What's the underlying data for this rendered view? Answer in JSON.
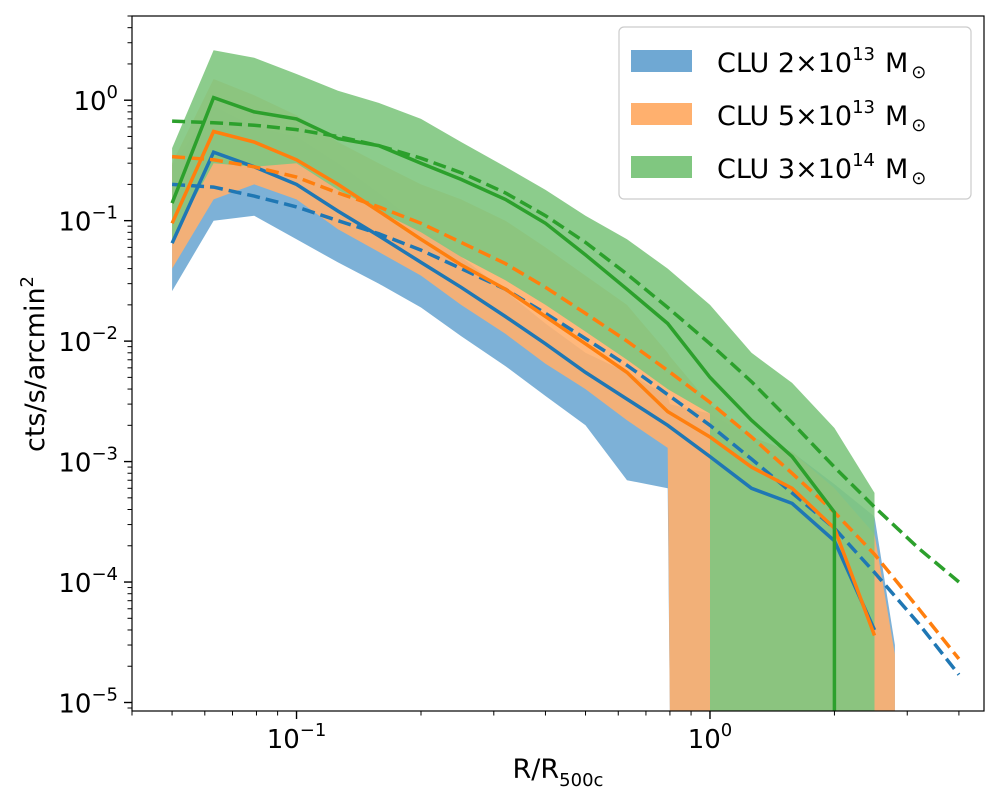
{
  "chart_data": {
    "type": "line",
    "xscale": "log",
    "yscale": "log",
    "xlim": [
      0.04,
      4.6
    ],
    "ylim": [
      8.5e-06,
      5.0
    ],
    "grid": false,
    "legend_position": "top-right",
    "xlabel": {
      "main": "R/R",
      "sub": "500c"
    },
    "ylabel": {
      "main": "cts/s/arcmin",
      "sup": "2"
    },
    "x_ticks": [
      {
        "value": 0.1,
        "base": "10",
        "exp": "−1"
      },
      {
        "value": 1.0,
        "base": "10",
        "exp": "0"
      }
    ],
    "y_ticks": [
      {
        "value": 1.0,
        "base": "10",
        "exp": "0"
      },
      {
        "value": 0.1,
        "base": "10",
        "exp": "−1"
      },
      {
        "value": 0.01,
        "base": "10",
        "exp": "−2"
      },
      {
        "value": 0.001,
        "base": "10",
        "exp": "−3"
      },
      {
        "value": 0.0001,
        "base": "10",
        "exp": "−4"
      },
      {
        "value": 1e-05,
        "base": "10",
        "exp": "−5"
      }
    ],
    "series": [
      {
        "name": "CLU 2×10^13 M☉",
        "legend": {
          "prefix": "CLU 2×10",
          "exp": "13",
          "unit": "M",
          "sub": "⊙"
        },
        "color": "#1f77b4",
        "band_color": "#6fa8d3",
        "band": {
          "x": [
            0.05,
            0.063,
            0.079,
            0.1,
            0.126,
            0.158,
            0.2,
            0.25,
            0.32,
            0.4,
            0.5,
            0.63,
            0.79,
            0.8,
            1.0,
            1.26,
            1.58,
            2.0,
            2.5,
            2.8,
            2.8
          ],
          "lower": [
            0.026,
            0.1,
            0.11,
            0.07,
            0.045,
            0.03,
            0.019,
            0.011,
            0.0062,
            0.0035,
            0.002,
            0.0007,
            0.0006,
            7.5e-06,
            7.5e-06,
            7.5e-06,
            7.5e-06,
            7.5e-06,
            7.5e-06,
            7.5e-06,
            7.5e-06
          ],
          "upper": [
            0.29,
            0.9,
            0.6,
            0.5,
            0.3,
            0.17,
            0.09,
            0.05,
            0.026,
            0.014,
            0.008,
            0.0055,
            0.0035,
            0.003,
            0.0025,
            0.0016,
            0.0012,
            0.00065,
            0.00035,
            3e-05,
            2e-05
          ]
        },
        "line": {
          "x": [
            0.05,
            0.063,
            0.079,
            0.1,
            0.126,
            0.158,
            0.2,
            0.25,
            0.32,
            0.4,
            0.5,
            0.63,
            0.79,
            1.0,
            1.26,
            1.58,
            2.0,
            2.5
          ],
          "y": [
            0.065,
            0.37,
            0.28,
            0.2,
            0.12,
            0.075,
            0.045,
            0.028,
            0.016,
            0.0095,
            0.0055,
            0.0033,
            0.002,
            0.0011,
            0.0006,
            0.00045,
            0.00022,
            4e-05
          ]
        },
        "model": {
          "x": [
            0.05,
            0.063,
            0.079,
            0.1,
            0.126,
            0.158,
            0.2,
            0.25,
            0.32,
            0.4,
            0.5,
            0.63,
            0.79,
            1.0,
            1.26,
            1.58,
            2.0,
            2.5,
            3.2,
            4.0
          ],
          "y": [
            0.2,
            0.19,
            0.16,
            0.13,
            0.1,
            0.078,
            0.057,
            0.04,
            0.027,
            0.017,
            0.0105,
            0.0063,
            0.0036,
            0.002,
            0.00105,
            0.00055,
            0.00028,
            0.00012,
            4.5e-05,
            1.7e-05
          ]
        }
      },
      {
        "name": "CLU 5×10^13 M☉",
        "legend": {
          "prefix": "CLU 5×10",
          "exp": "13",
          "unit": "M",
          "sub": "⊙"
        },
        "color": "#ff7f0e",
        "band_color": "#ffb06e",
        "band": {
          "x": [
            0.05,
            0.063,
            0.079,
            0.1,
            0.126,
            0.158,
            0.2,
            0.25,
            0.32,
            0.4,
            0.5,
            0.63,
            0.79,
            0.8,
            1.0,
            1.26,
            1.58,
            2.0,
            2.5,
            2.8,
            2.8
          ],
          "lower": [
            0.04,
            0.15,
            0.2,
            0.15,
            0.085,
            0.055,
            0.035,
            0.02,
            0.0115,
            0.0065,
            0.004,
            0.0022,
            0.0013,
            7.5e-06,
            7.5e-06,
            7.5e-06,
            7.5e-06,
            7.5e-06,
            7.5e-06,
            7.5e-06,
            7.5e-06
          ],
          "upper": [
            0.3,
            1.5,
            1.1,
            0.75,
            0.45,
            0.3,
            0.2,
            0.15,
            0.1,
            0.06,
            0.035,
            0.02,
            0.008,
            0.0075,
            0.003,
            0.0016,
            0.0012,
            0.0006,
            0.00025,
            2.5e-05,
            2e-05
          ]
        },
        "line": {
          "x": [
            0.05,
            0.063,
            0.079,
            0.1,
            0.126,
            0.158,
            0.2,
            0.25,
            0.32,
            0.4,
            0.5,
            0.63,
            0.79,
            1.0,
            1.26,
            1.58,
            2.0,
            2.5
          ],
          "y": [
            0.095,
            0.55,
            0.45,
            0.32,
            0.2,
            0.12,
            0.07,
            0.043,
            0.027,
            0.016,
            0.0095,
            0.0055,
            0.0026,
            0.0016,
            0.0009,
            0.0006,
            0.00028,
            3.6e-05
          ]
        },
        "model": {
          "x": [
            0.05,
            0.063,
            0.079,
            0.1,
            0.126,
            0.158,
            0.2,
            0.25,
            0.32,
            0.4,
            0.5,
            0.63,
            0.79,
            1.0,
            1.26,
            1.58,
            2.0,
            2.5,
            3.2,
            4.0
          ],
          "y": [
            0.34,
            0.32,
            0.28,
            0.23,
            0.17,
            0.13,
            0.095,
            0.066,
            0.044,
            0.028,
            0.017,
            0.01,
            0.0057,
            0.0031,
            0.0016,
            0.0008,
            0.00038,
            0.00017,
            6e-05,
            2.3e-05
          ]
        }
      },
      {
        "name": "CLU 3×10^14 M☉",
        "legend": {
          "prefix": "CLU 3×10",
          "exp": "14",
          "unit": "M",
          "sub": "⊙"
        },
        "color": "#2ca02c",
        "band_color": "#80c780",
        "band": {
          "x": [
            0.05,
            0.063,
            0.079,
            0.1,
            0.126,
            0.158,
            0.2,
            0.25,
            0.32,
            0.4,
            0.5,
            0.63,
            0.79,
            1.0,
            1.0,
            1.26,
            1.58,
            2.0,
            2.5,
            2.5
          ],
          "lower": [
            0.07,
            0.3,
            0.28,
            0.3,
            0.18,
            0.12,
            0.08,
            0.05,
            0.032,
            0.02,
            0.012,
            0.007,
            0.004,
            0.0025,
            7.5e-06,
            7.5e-06,
            7.5e-06,
            7.5e-06,
            7.5e-06,
            7.5e-06
          ],
          "upper": [
            0.4,
            2.6,
            2.25,
            1.65,
            1.2,
            0.95,
            0.7,
            0.45,
            0.28,
            0.18,
            0.11,
            0.07,
            0.04,
            0.02,
            0.02,
            0.008,
            0.0045,
            0.0019,
            0.00055,
            0.0004
          ]
        },
        "line": {
          "x": [
            0.05,
            0.063,
            0.079,
            0.1,
            0.126,
            0.158,
            0.2,
            0.25,
            0.32,
            0.4,
            0.5,
            0.63,
            0.79,
            1.0,
            1.26,
            1.58,
            2.0,
            2.0
          ],
          "y": [
            0.14,
            1.05,
            0.8,
            0.7,
            0.48,
            0.42,
            0.3,
            0.22,
            0.15,
            0.095,
            0.052,
            0.027,
            0.014,
            0.005,
            0.0022,
            0.0011,
            0.00038,
            5e-06
          ]
        },
        "model": {
          "x": [
            0.05,
            0.063,
            0.079,
            0.1,
            0.126,
            0.158,
            0.2,
            0.25,
            0.32,
            0.4,
            0.5,
            0.63,
            0.79,
            1.0,
            1.26,
            1.58,
            2.0,
            2.5,
            3.2,
            4.0
          ],
          "y": [
            0.67,
            0.65,
            0.62,
            0.57,
            0.5,
            0.42,
            0.33,
            0.25,
            0.17,
            0.11,
            0.066,
            0.036,
            0.019,
            0.0095,
            0.0046,
            0.0021,
            0.0009,
            0.00042,
            0.00019,
            0.0001
          ]
        }
      }
    ]
  }
}
